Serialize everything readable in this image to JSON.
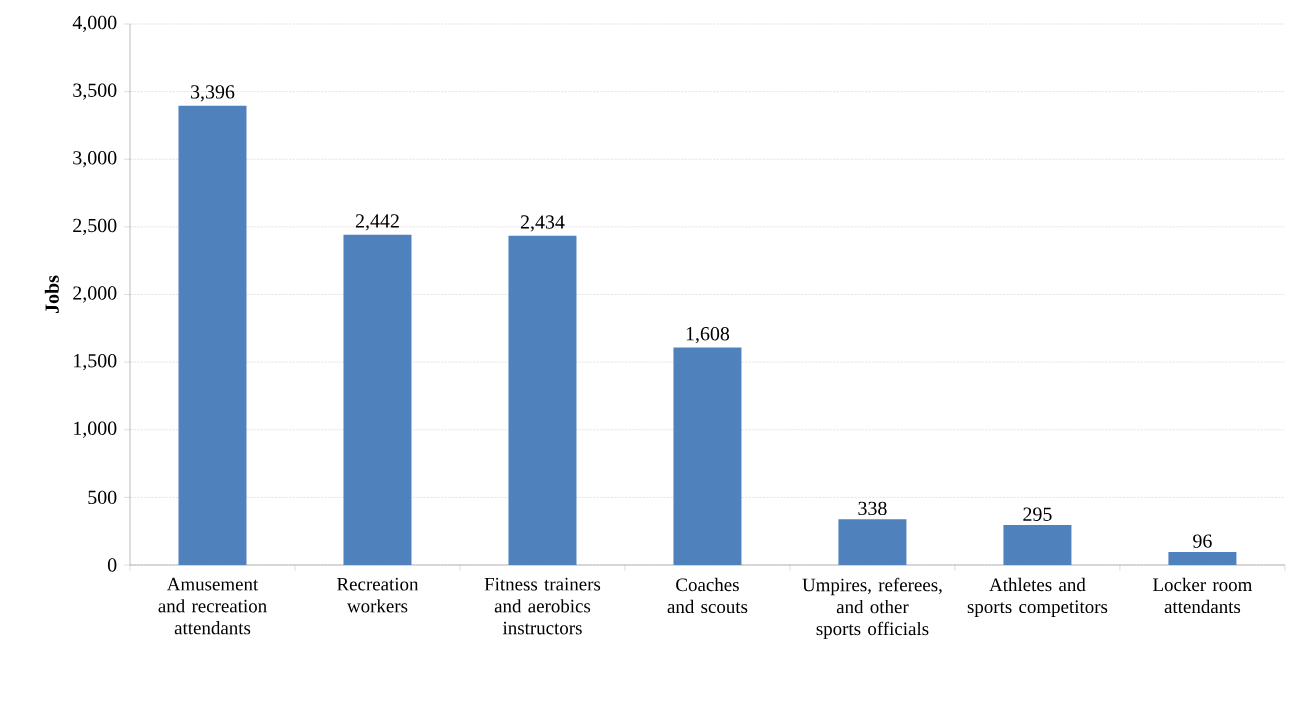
{
  "chart_data": {
    "type": "bar",
    "ylabel": "Jobs",
    "categories": [
      "Amusement and recreation attendants",
      "Recreation workers",
      "Fitness trainers and aerobics instructors",
      "Coaches and scouts",
      "Umpires, referees, and other sports officials",
      "Athletes and sports competitors",
      "Locker room attendants"
    ],
    "values": [
      3396,
      2442,
      2434,
      1608,
      338,
      295,
      96
    ],
    "value_labels": [
      "3,396",
      "2,442",
      "2,434",
      "1,608",
      "338",
      "295",
      "96"
    ],
    "color": "#4f81bd",
    "ylim": [
      0,
      4000
    ],
    "yticks": [
      {
        "value": 0,
        "label": "0"
      },
      {
        "value": 500,
        "label": "500"
      },
      {
        "value": 1000,
        "label": "1,000"
      },
      {
        "value": 1500,
        "label": "1,500"
      },
      {
        "value": 2000,
        "label": "2,000"
      },
      {
        "value": 2500,
        "label": "2,500"
      },
      {
        "value": 3000,
        "label": "3,000"
      },
      {
        "value": 3500,
        "label": "3,500"
      },
      {
        "value": 4000,
        "label": "4,000"
      }
    ],
    "grid": "y"
  }
}
